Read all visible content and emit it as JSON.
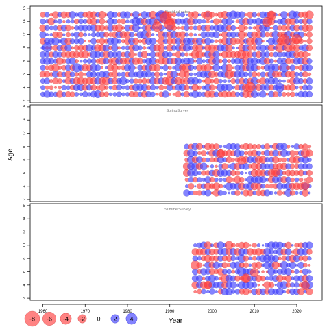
{
  "chart_data": {
    "type": "scatter",
    "subtype": "residual-bubble",
    "xlabel": "Year",
    "ylabel": "Age",
    "x_ticks": [
      1960,
      1970,
      1980,
      1990,
      2000,
      2010,
      2020
    ],
    "y_ticks": [
      2,
      4,
      6,
      8,
      10,
      12,
      14,
      16
    ],
    "xlim": [
      1957,
      2026
    ],
    "ylim": [
      1.7,
      16.3
    ],
    "positive_color": "#4040ff",
    "negative_color": "#ff4040",
    "legend": {
      "values": [
        -8,
        -6,
        -4,
        -2,
        0,
        2,
        4
      ],
      "labels": [
        "-8",
        "-6",
        "-4",
        "-2",
        "0",
        "2",
        "4"
      ]
    },
    "panels": [
      {
        "title": "Residual catch",
        "years": [
          1960,
          2023
        ],
        "ages": [
          3,
          15
        ],
        "highlights": [
          {
            "year": 1988,
            "age": 14.8,
            "value": 5.5
          },
          {
            "year": 1989,
            "age": 14.5,
            "value": -6
          },
          {
            "year": 1990,
            "age": 13.5,
            "value": -5
          },
          {
            "year": 1987,
            "age": 13.2,
            "value": -4
          },
          {
            "year": 1999,
            "age": 14.9,
            "value": -3.5
          },
          {
            "year": 2014,
            "age": 14.9,
            "value": -3.5
          },
          {
            "year": 2013,
            "age": 13.9,
            "value": -4
          },
          {
            "year": 2017,
            "age": 11.2,
            "value": -5.5
          },
          {
            "year": 2020,
            "age": 11.3,
            "value": -4
          },
          {
            "year": 1961,
            "age": 10.1,
            "value": 3.5
          },
          {
            "year": 2009,
            "age": 4.1,
            "value": -4
          },
          {
            "year": 2016,
            "age": 4.0,
            "value": 3.5
          }
        ]
      },
      {
        "title": "SpringSurvey",
        "years": [
          1994,
          2023
        ],
        "ages": [
          3,
          10
        ],
        "highlights": [
          {
            "year": 2002,
            "age": 8.9,
            "value": -3
          },
          {
            "year": 2007,
            "age": 7.9,
            "value": -3
          },
          {
            "year": 2015,
            "age": 6.1,
            "value": -3
          },
          {
            "year": 2022,
            "age": 4.1,
            "value": -3
          }
        ]
      },
      {
        "title": "SummerSurvey",
        "years": [
          1996,
          2023
        ],
        "ages": [
          3,
          10
        ],
        "highlights": [
          {
            "year": 2008,
            "age": 5.0,
            "value": -3.5
          },
          {
            "year": 2010,
            "age": 5.9,
            "value": -3
          },
          {
            "year": 2022,
            "age": 3.9,
            "value": -3
          },
          {
            "year": 1999,
            "age": 4.0,
            "value": -2.5
          }
        ]
      }
    ]
  }
}
